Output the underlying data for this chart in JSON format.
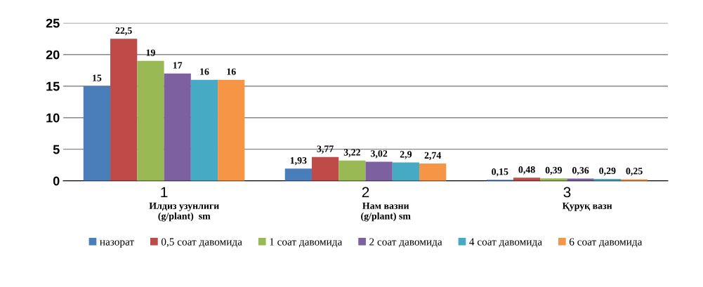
{
  "chart_data": {
    "type": "bar",
    "categories": [
      "1",
      "2",
      "3"
    ],
    "annotations": [
      "Илдиз узунлиги\n(g/plant)  sm",
      "Нам вазни\n(g/plant) sm",
      "Қуруқ вазн"
    ],
    "series": [
      {
        "name": "назорат",
        "color": "#4a7ebb",
        "values": [
          15,
          1.93,
          0.15
        ],
        "value_labels": [
          "15",
          "1,93",
          "0,15"
        ]
      },
      {
        "name": "0,5 соат давомида",
        "color": "#be4b48",
        "values": [
          22.5,
          3.77,
          0.48
        ],
        "value_labels": [
          "22,5",
          "3,77",
          "0,48"
        ]
      },
      {
        "name": "1 соат давомида",
        "color": "#98b954",
        "values": [
          19,
          3.22,
          0.39
        ],
        "value_labels": [
          "19",
          "3,22",
          "0,39"
        ]
      },
      {
        "name": "2 соат давомида",
        "color": "#7d60a0",
        "values": [
          17,
          3.02,
          0.36
        ],
        "value_labels": [
          "17",
          "3,02",
          "0,36"
        ]
      },
      {
        "name": "4 соат давомида",
        "color": "#46aac5",
        "values": [
          16,
          2.9,
          0.29
        ],
        "value_labels": [
          "16",
          "2,9",
          "0,29"
        ]
      },
      {
        "name": "6 соат давомида",
        "color": "#f69546",
        "values": [
          16,
          2.74,
          0.25
        ],
        "value_labels": [
          "16",
          "2,74",
          "0,25"
        ]
      }
    ],
    "ylim": [
      0,
      25
    ],
    "yticks": [
      0,
      5,
      10,
      15,
      20,
      25
    ],
    "grid": "y",
    "legend": "bottom"
  }
}
